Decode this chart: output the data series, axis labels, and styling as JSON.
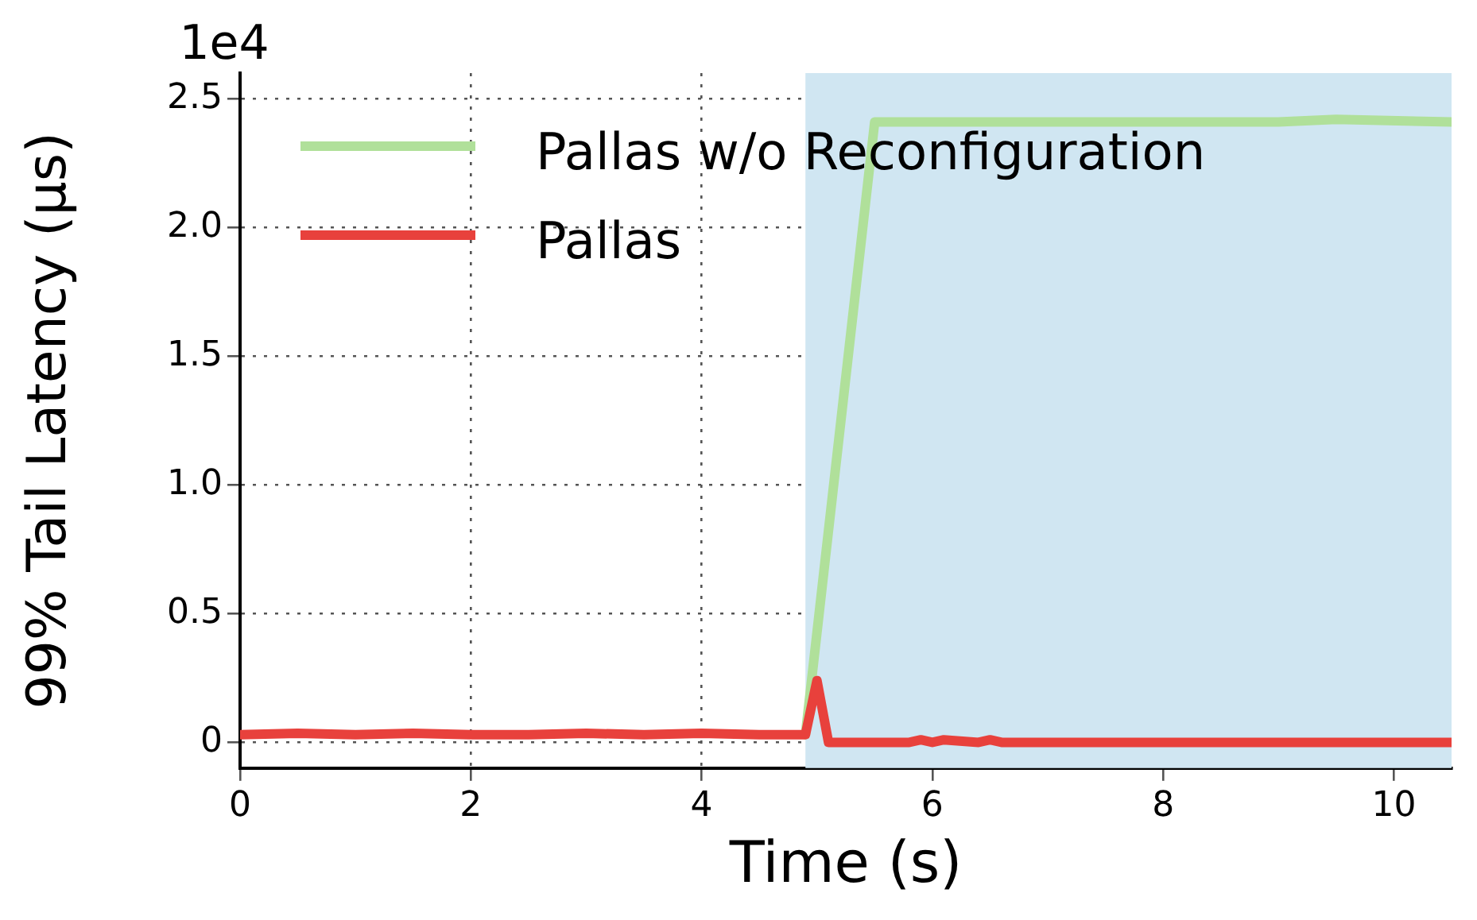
{
  "chart_data": {
    "type": "line",
    "xlabel": "Time (s)",
    "ylabel": "99% Tail Latency (μs)",
    "annotations": [
      "1e4"
    ],
    "xlim": [
      0,
      10.5
    ],
    "xticks": [
      0,
      2,
      4,
      6,
      8,
      10
    ],
    "ylim": [
      -0.1,
      2.6
    ],
    "yticks": [
      {
        "value": 0,
        "label": "0"
      },
      {
        "value": 0.5,
        "label": "0.5"
      },
      {
        "value": 1,
        "label": "1.0"
      },
      {
        "value": 1.5,
        "label": "1.5"
      },
      {
        "value": 2,
        "label": "2.0"
      },
      {
        "value": 2.5,
        "label": "2.5"
      }
    ],
    "grid": true,
    "legend": "top left",
    "line_style": "solid",
    "marker": "none",
    "bands": [
      {
        "axis": "x",
        "from": 4.9,
        "to": 10.5,
        "color": "#d0e6f2"
      }
    ],
    "series": [
      {
        "name": "Pallas w/o Reconfiguration",
        "color": "#b0e09a",
        "x": [
          4.9,
          5.5,
          6.0,
          7.0,
          8.0,
          9.0,
          9.5,
          10.5
        ],
        "values": [
          0.03,
          2.41,
          2.41,
          2.41,
          2.41,
          2.41,
          2.42,
          2.41
        ]
      },
      {
        "name": "Pallas",
        "color": "#e8413c",
        "x": [
          0,
          0.5,
          1,
          1.5,
          2,
          2.5,
          3,
          3.5,
          4,
          4.5,
          4.9,
          5.0,
          5.1,
          5.8,
          5.9,
          6.0,
          6.1,
          6.4,
          6.5,
          6.6,
          10.5
        ],
        "values": [
          0.03,
          0.035,
          0.03,
          0.035,
          0.03,
          0.03,
          0.035,
          0.03,
          0.035,
          0.03,
          0.03,
          0.24,
          0,
          0,
          0.01,
          0,
          0.01,
          0,
          0.01,
          0,
          0
        ]
      }
    ]
  }
}
